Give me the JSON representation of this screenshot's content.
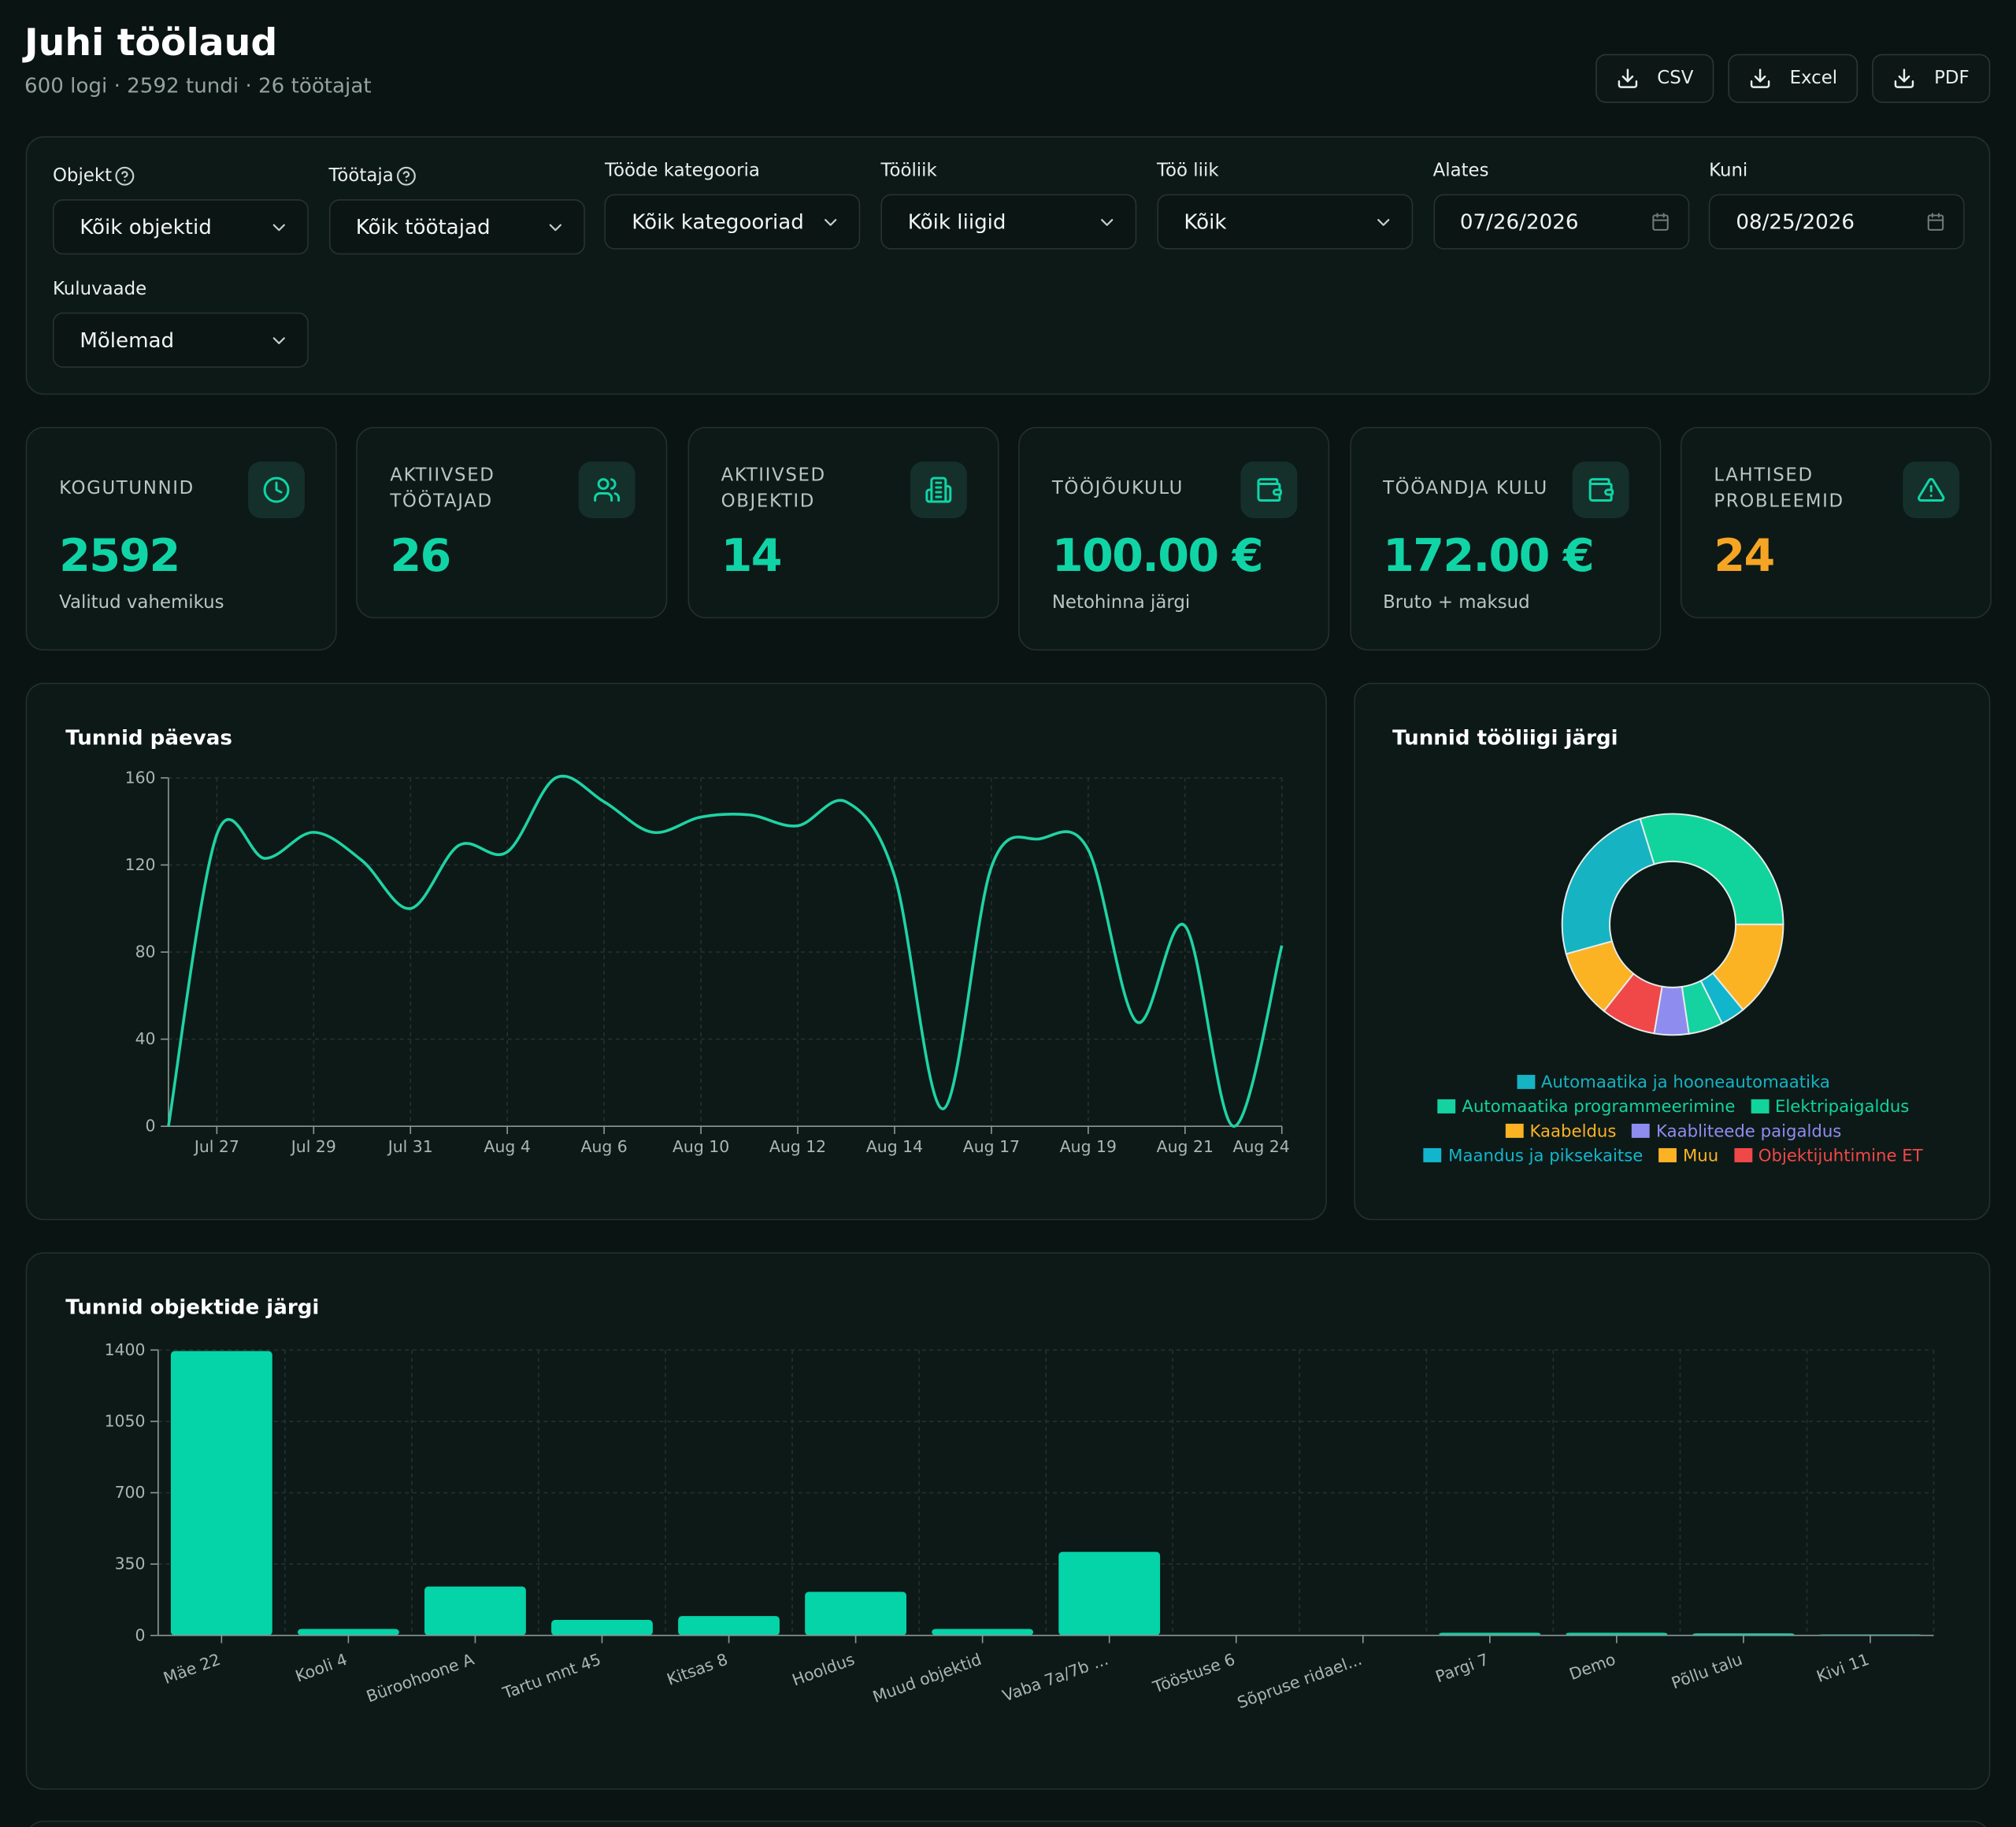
{
  "header": {
    "title": "Juhi töölaud",
    "subtitle": "600 logi · 2592 tundi · 26 töötajat",
    "buttons": [
      "CSV",
      "Excel",
      "PDF"
    ]
  },
  "filters": [
    {
      "label": "Objekt",
      "value": "Kõik objektid",
      "help": true,
      "kind": "select"
    },
    {
      "label": "Töötaja",
      "value": "Kõik töötajad",
      "help": true,
      "kind": "select"
    },
    {
      "label": "Tööde kategooria",
      "value": "Kõik kategooriad",
      "kind": "select"
    },
    {
      "label": "Tööliik",
      "value": "Kõik liigid",
      "kind": "select"
    },
    {
      "label": "Töö liik",
      "value": "Kõik",
      "kind": "select"
    },
    {
      "label": "Alates",
      "value": "07/26/2026",
      "kind": "date"
    },
    {
      "label": "Kuni",
      "value": "08/25/2026",
      "kind": "date"
    },
    {
      "label": "Kuluvaade",
      "value": "Mõlemad",
      "kind": "select"
    }
  ],
  "kpis": [
    {
      "label": "KOGUTUNNID",
      "value": "2592",
      "note": "Valitud vahemikus",
      "icon": "clock",
      "color": "#10d4a6"
    },
    {
      "label": "AKTIIVSED TÖÖTAJAD",
      "value": "26",
      "icon": "users",
      "color": "#10d4a6"
    },
    {
      "label": "AKTIIVSED OBJEKTID",
      "value": "14",
      "icon": "building",
      "color": "#10d4a6"
    },
    {
      "label": "TÖÖJÕUKULU",
      "value": "100.00 €",
      "note": "Netohinna järgi",
      "icon": "wallet",
      "color": "#10d4a6"
    },
    {
      "label": "TÖÖANDJA KULU",
      "value": "172.00 €",
      "note": "Bruto + maksud",
      "icon": "wallet",
      "color": "#10d4a6"
    },
    {
      "label": "LAHTISED PROBLEEMID",
      "value": "24",
      "icon": "alert",
      "color": "#f5a524"
    }
  ],
  "chart_data": [
    {
      "type": "line",
      "title": "Tunnid päevas",
      "color": "#1fd3a4",
      "categories": [
        null,
        "Jul 27",
        null,
        "Jul 29",
        null,
        "Jul 31",
        null,
        "Aug 4",
        null,
        "Aug 6",
        null,
        "Aug 10",
        null,
        "Aug 12",
        null,
        "Aug 14",
        null,
        "Aug 17",
        null,
        "Aug 19",
        null,
        "Aug 21",
        null,
        "Aug 24"
      ],
      "values": [
        0,
        134,
        123,
        135,
        122,
        100,
        129,
        126,
        160,
        149,
        135,
        142,
        143,
        138,
        149,
        115,
        8,
        119,
        132,
        127,
        48,
        92,
        0,
        83
      ],
      "ylim": [
        0,
        160
      ],
      "yticks": [
        0,
        40,
        80,
        120,
        160
      ],
      "grid": true
    },
    {
      "type": "pie",
      "title": "Tunnid tööliigi järgi",
      "donut": true,
      "categories": [
        "Automaatika ja hooneautomaatika",
        "Automaatika programmeerimine",
        "Elektripaigaldus",
        "Kaabeldus",
        "Kaabliteede paigaldus",
        "Maandus ja piksekaitse",
        "Muu",
        "Objektijuhtimine ET"
      ],
      "colors": [
        "#16b3c2",
        "#14d3a0",
        "#10d49c",
        "#fbb324",
        "#8f8cf0",
        "#12b6cc",
        "#fbb324",
        "#f04848"
      ],
      "values": [
        635,
        130,
        770,
        363,
        130,
        93,
        259,
        207
      ]
    },
    {
      "type": "bar",
      "title": "Tunnid objektide järgi",
      "color": "#04d4a8",
      "categories": [
        "Mäe 22",
        "Kooli 4",
        "Büroohoone A",
        "Tartu mnt 45",
        "Kitsas 8",
        "Hooldus",
        "Muud objektid",
        "Vaba 7a/7b ...",
        "Tööstuse 6",
        "Sõpruse ridael...",
        "Pargi 7",
        "Demo",
        "Põllu talu",
        "Kivi 11"
      ],
      "values": [
        1395,
        32,
        240,
        76,
        95,
        214,
        32,
        410,
        0,
        0,
        13,
        13,
        10,
        5
      ],
      "ylim": [
        0,
        1400
      ],
      "yticks": [
        0,
        350,
        700,
        1050,
        1400
      ],
      "grid": true
    }
  ]
}
